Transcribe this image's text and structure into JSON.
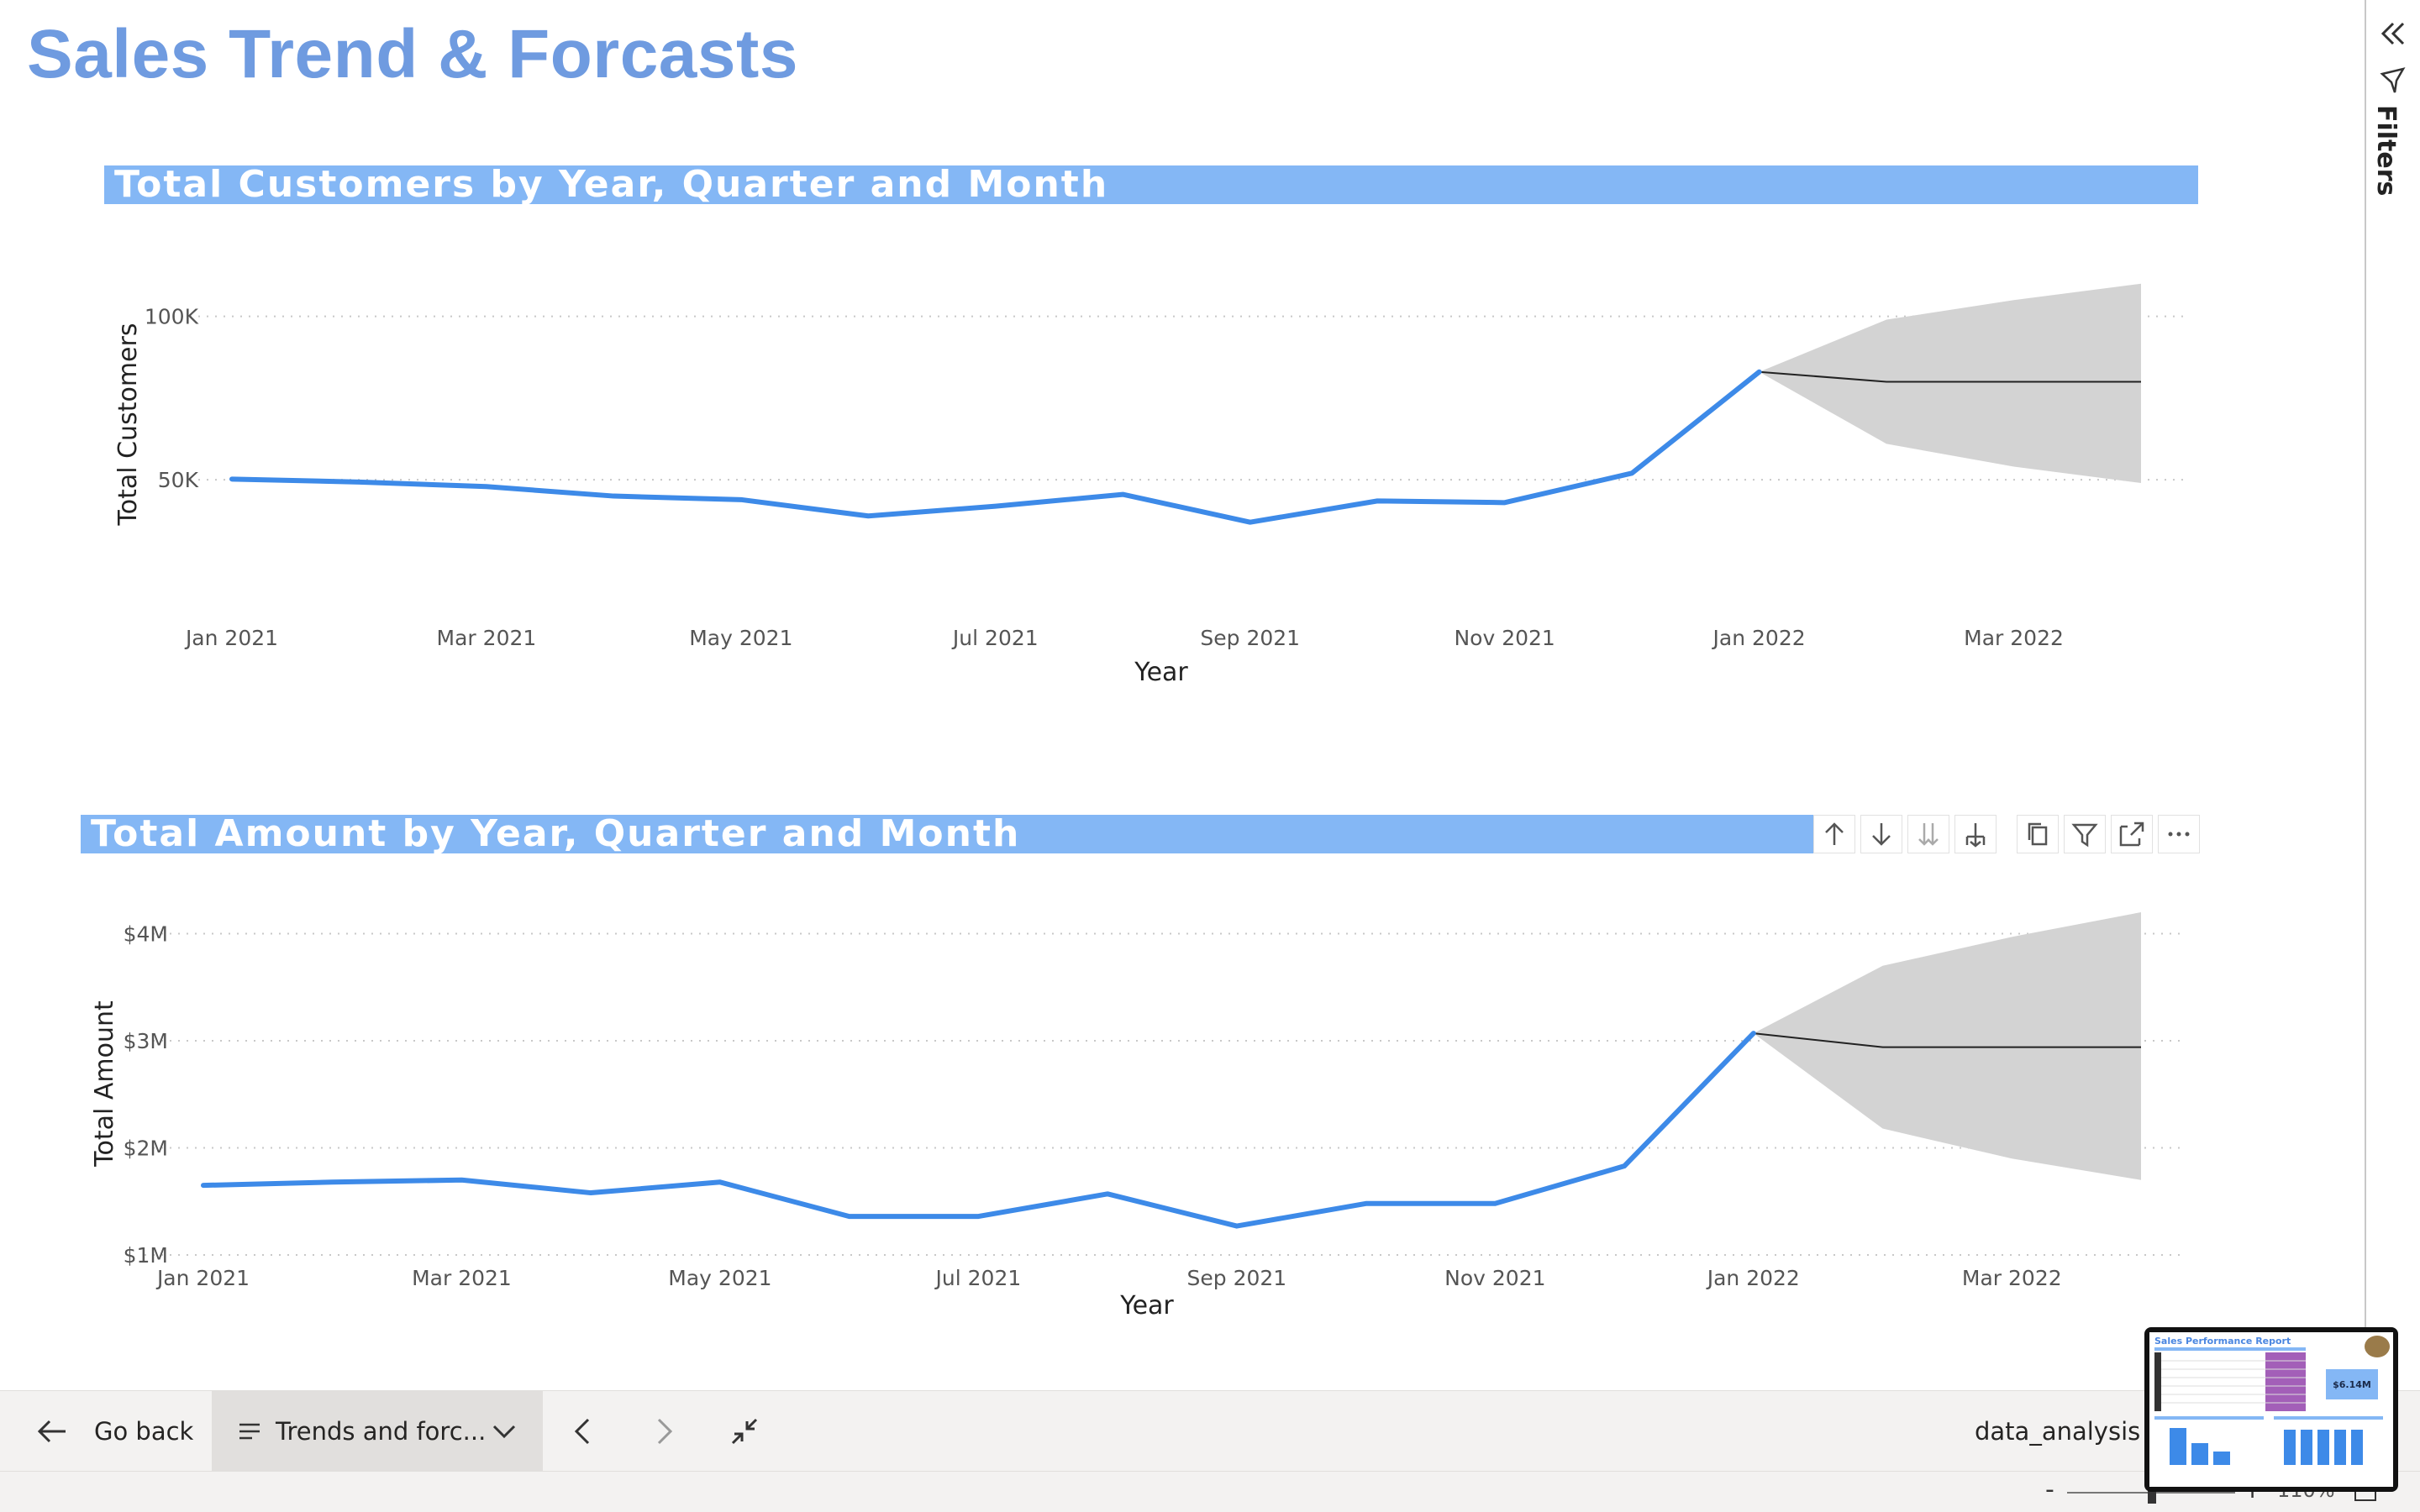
{
  "page": {
    "title": "Sales Trend & Forcasts"
  },
  "filters_pane": {
    "label": "Filters",
    "collapse_icon": "double-chevron-left-icon",
    "filter_icon": "funnel-icon"
  },
  "visual_toolbar": {
    "icons": [
      "arrow-up-icon",
      "arrow-down-icon",
      "double-arrow-down-icon",
      "expand-hierarchy-icon",
      "copy-icon",
      "filter-icon",
      "focus-mode-icon",
      "more-options-icon"
    ]
  },
  "bottom_bar": {
    "go_back_label": "Go back",
    "page_selector_label": "Trends and forc...",
    "workspace_label": "data_analysis",
    "zoom_value": "110%"
  },
  "thumbnail": {
    "title": "Sales Performance Report",
    "kpi": "$6.14M"
  },
  "chart_data": [
    {
      "type": "line",
      "title": "Total Customers by Year, Quarter and Month",
      "xlabel": "Year",
      "ylabel": "Total Customers",
      "x_tick_labels": [
        "Jan 2021",
        "Mar 2021",
        "May 2021",
        "Jul 2021",
        "Sep 2021",
        "Nov 2021",
        "Jan 2022",
        "Mar 2022"
      ],
      "y_tick_labels": [
        "50K",
        "100K"
      ],
      "y_ticks": [
        50000,
        100000
      ],
      "ylim": [
        22000,
        112000
      ],
      "grid": true,
      "categories": [
        "Jan 2021",
        "Feb 2021",
        "Mar 2021",
        "Apr 2021",
        "May 2021",
        "Jun 2021",
        "Jul 2021",
        "Aug 2021",
        "Sep 2021",
        "Oct 2021",
        "Nov 2021",
        "Dec 2021",
        "Jan 2022",
        "Feb 2022",
        "Mar 2022",
        "Apr 2022"
      ],
      "values": [
        50200,
        49300,
        47900,
        45000,
        43900,
        38900,
        41900,
        45500,
        37000,
        43500,
        43000,
        52000,
        83000,
        null,
        null,
        null
      ],
      "forecast": {
        "categories": [
          "Jan 2022",
          "Feb 2022",
          "Mar 2022",
          "Apr 2022"
        ],
        "values": [
          83000,
          80000,
          80000,
          80000
        ],
        "upper": [
          83000,
          99000,
          105000,
          110000
        ],
        "lower": [
          83000,
          61000,
          54000,
          49000
        ]
      },
      "colors": {
        "line": "#3d8ae8",
        "forecast": "#222222",
        "band": "#d3d3d3"
      }
    },
    {
      "type": "line",
      "title": "Total Amount by Year, Quarter and Month",
      "xlabel": "Year",
      "ylabel": "Total Amount",
      "x_tick_labels": [
        "Jan 2021",
        "Mar 2021",
        "May 2021",
        "Jul 2021",
        "Sep 2021",
        "Nov 2021",
        "Jan 2022",
        "Mar 2022"
      ],
      "y_tick_labels": [
        "$1M",
        "$2M",
        "$3M",
        "$4M"
      ],
      "y_ticks": [
        1000000,
        2000000,
        3000000,
        4000000
      ],
      "ylim": [
        1000000,
        4200000
      ],
      "grid": true,
      "categories": [
        "Jan 2021",
        "Feb 2021",
        "Mar 2021",
        "Apr 2021",
        "May 2021",
        "Jun 2021",
        "Jul 2021",
        "Aug 2021",
        "Sep 2021",
        "Oct 2021",
        "Nov 2021",
        "Dec 2021",
        "Jan 2022",
        "Feb 2022",
        "Mar 2022",
        "Apr 2022"
      ],
      "values": [
        1650000,
        1680000,
        1700000,
        1580000,
        1680000,
        1360000,
        1360000,
        1570000,
        1270000,
        1480000,
        1480000,
        1830000,
        3070000,
        null,
        null,
        null
      ],
      "forecast": {
        "categories": [
          "Jan 2022",
          "Feb 2022",
          "Mar 2022",
          "Apr 2022"
        ],
        "values": [
          3070000,
          2940000,
          2940000,
          2940000
        ],
        "upper": [
          3070000,
          3700000,
          3970000,
          4200000
        ],
        "lower": [
          3070000,
          2180000,
          1900000,
          1700000
        ]
      },
      "colors": {
        "line": "#3d8ae8",
        "forecast": "#222222",
        "band": "#d3d3d3"
      }
    }
  ]
}
